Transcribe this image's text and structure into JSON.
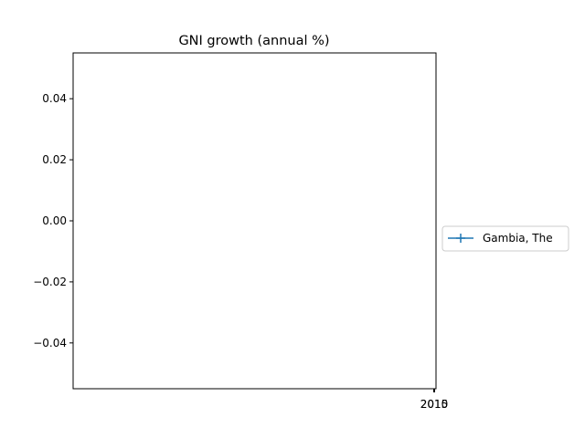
{
  "chart_data": {
    "type": "line",
    "title": "GNI growth (annual %)",
    "xlabel": "",
    "ylabel": "",
    "x_tick_labels": [
      "2010",
      "2015"
    ],
    "y_ticks": [
      0.04,
      0.02,
      0.0,
      -0.02,
      -0.04
    ],
    "y_tick_labels": [
      "0.04",
      "0.02",
      "0.00",
      "−0.02",
      "−0.04"
    ],
    "ylim": [
      -0.055,
      0.055
    ],
    "grid": false,
    "legend_position": "right, outside plot",
    "series": [
      {
        "name": "Gambia, The",
        "x": [],
        "values": [],
        "color": "#1f77b4",
        "marker": "plus"
      }
    ]
  }
}
